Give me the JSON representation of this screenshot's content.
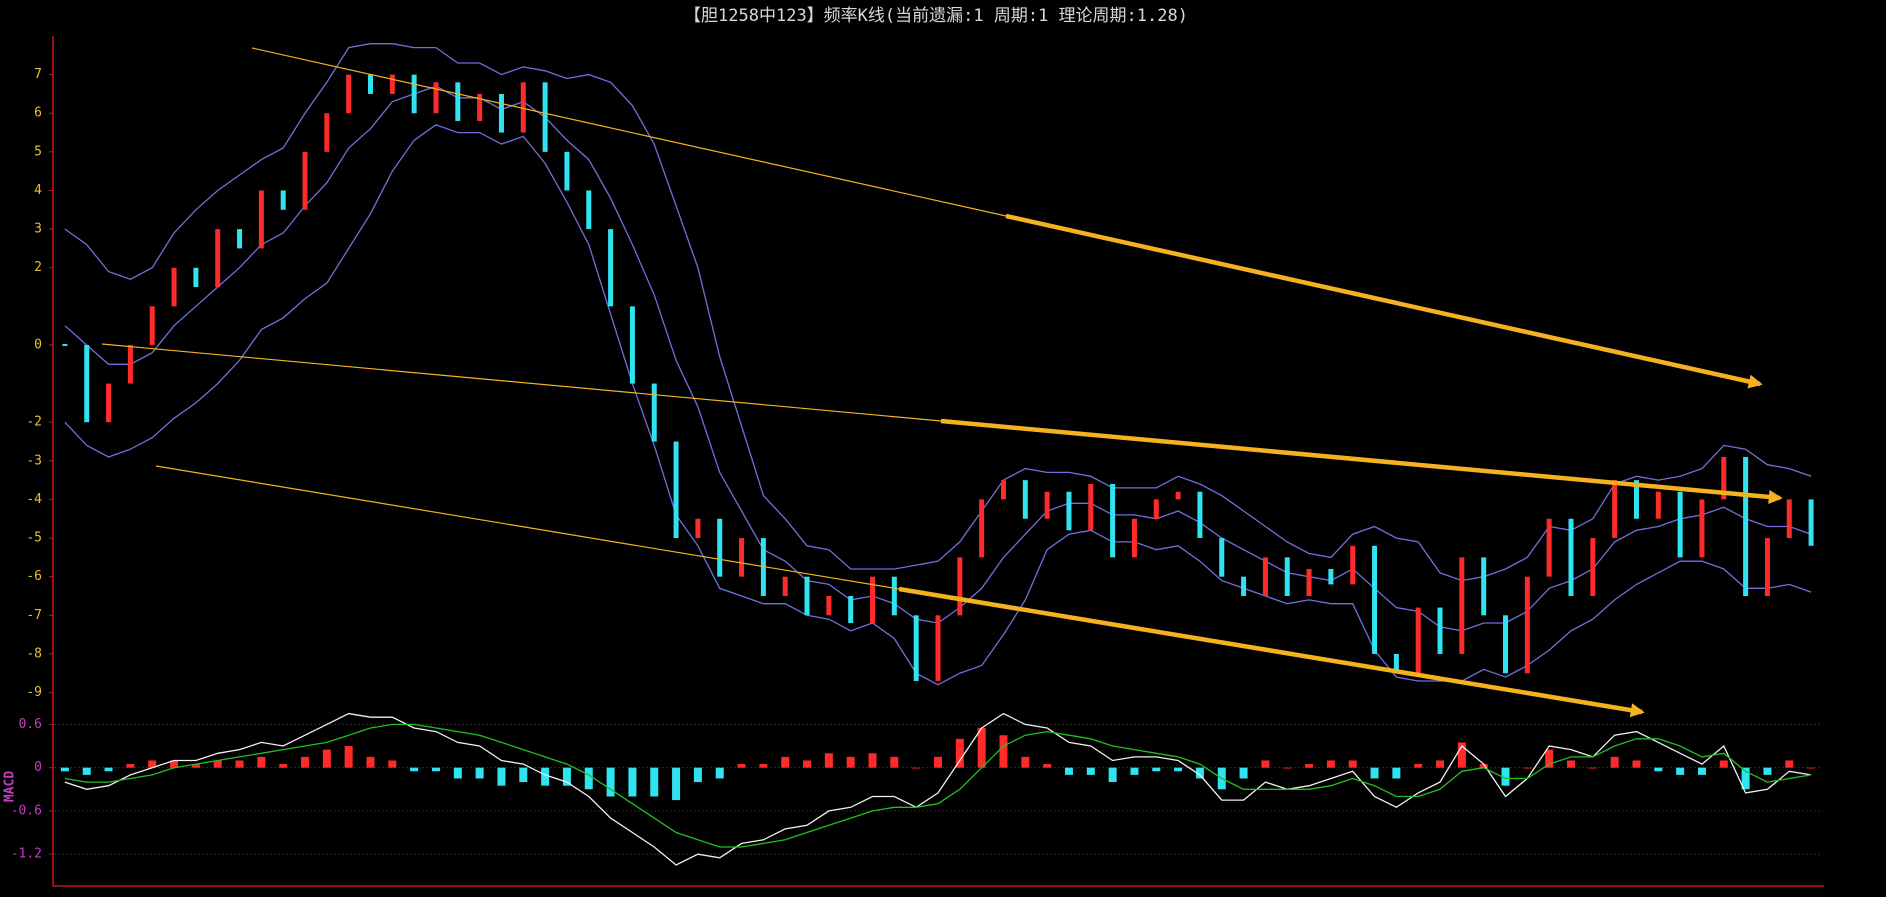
{
  "chart_data": [
    {
      "type": "candlestick",
      "title": "【胆1258中123】频率K线(当前遗漏:1 周期:1 理论周期:1.28)",
      "values": [
        0,
        -2,
        -1,
        0,
        1,
        2,
        1.5,
        3,
        2.5,
        4,
        3.5,
        5,
        6,
        7,
        6.5,
        7,
        6,
        6.8,
        5.8,
        6.5,
        5.5,
        6.8,
        5,
        4,
        3,
        1,
        -1,
        -2.5,
        -5,
        -4.5,
        -6,
        -5,
        -6.5,
        -6,
        -7,
        -6.5,
        -7.2,
        -6,
        -7,
        -8.7,
        -7,
        -5.5,
        -4,
        -3.5,
        -4.5,
        -3.8,
        -4.8,
        -3.6,
        -5.5,
        -4.5,
        -4,
        -3.8,
        -5,
        -6,
        -6.5,
        -5.5,
        -6.5,
        -5.8,
        -6.2,
        -5.2,
        -8,
        -8.5,
        -6.8,
        -8,
        -5.5,
        -7,
        -8.5,
        -6,
        -4.5,
        -6.5,
        -5,
        -3.5,
        -4.5,
        -3.8,
        -5.5,
        -4,
        -2.9,
        -6.5,
        -5,
        -4,
        -5.2
      ],
      "up_color": "#ff2a2a",
      "down_color": "#2fe3f0",
      "series": [
        {
          "color": "#7070dc",
          "values": [
            3.0,
            2.6,
            1.9,
            1.7,
            2.0,
            2.9,
            3.5,
            4.0,
            4.4,
            4.8,
            5.1,
            6.0,
            6.8,
            7.7,
            7.8,
            7.8,
            7.7,
            7.7,
            7.3,
            7.3,
            7.0,
            7.2,
            7.1,
            6.9,
            7.0,
            6.8,
            6.2,
            5.2,
            3.6,
            2.0,
            -0.3,
            -2.1,
            -3.9,
            -4.5,
            -5.2,
            -5.3,
            -5.8,
            -5.8,
            -5.8,
            -5.7,
            -5.6,
            -5.1,
            -4.3,
            -3.5,
            -3.2,
            -3.3,
            -3.3,
            -3.4,
            -3.7,
            -3.7,
            -3.7,
            -3.4,
            -3.6,
            -3.9,
            -4.3,
            -4.7,
            -5.1,
            -5.4,
            -5.5,
            -4.9,
            -4.7,
            -5.0,
            -5.1,
            -5.9,
            -6.1,
            -6.0,
            -5.8,
            -5.5,
            -4.7,
            -4.8,
            -4.5,
            -3.6,
            -3.4,
            -3.5,
            -3.4,
            -3.2,
            -2.6,
            -2.7,
            -3.1,
            -3.2,
            -3.4
          ]
        },
        {
          "color": "#7070dc",
          "values": [
            0.5,
            0,
            -0.5,
            -0.5,
            -0.2,
            0.5,
            1,
            1.5,
            2,
            2.6,
            2.9,
            3.6,
            4.2,
            5.1,
            5.6,
            6.3,
            6.5,
            6.7,
            6.4,
            6.4,
            6.1,
            6.3,
            5.9,
            5.3,
            4.8,
            3.8,
            2.6,
            1.3,
            -0.4,
            -1.6,
            -3.3,
            -4.3,
            -5.3,
            -5.6,
            -6.1,
            -6.2,
            -6.6,
            -6.5,
            -6.7,
            -7.1,
            -7.2,
            -6.8,
            -6.3,
            -5.5,
            -4.9,
            -4.3,
            -4.1,
            -4.1,
            -4.4,
            -4.4,
            -4.5,
            -4.3,
            -4.6,
            -5,
            -5.3,
            -5.6,
            -5.9,
            -6,
            -6.1,
            -5.8,
            -6.3,
            -6.8,
            -6.9,
            -7.3,
            -7.4,
            -7.2,
            -7.2,
            -6.9,
            -6.3,
            -6.1,
            -5.8,
            -5.1,
            -4.8,
            -4.7,
            -4.5,
            -4.4,
            -4.2,
            -4.5,
            -4.7,
            -4.7,
            -4.9
          ]
        },
        {
          "color": "#7070dc",
          "values": [
            -2.0,
            -2.6,
            -2.9,
            -2.7,
            -2.4,
            -1.9,
            -1.5,
            -1.0,
            -0.4,
            0.4,
            0.7,
            1.2,
            1.6,
            2.5,
            3.4,
            4.5,
            5.3,
            5.7,
            5.5,
            5.5,
            5.2,
            5.4,
            4.7,
            3.7,
            2.6,
            0.8,
            -1.0,
            -2.6,
            -4.4,
            -5.2,
            -6.3,
            -6.5,
            -6.7,
            -6.7,
            -7.0,
            -7.1,
            -7.4,
            -7.2,
            -7.6,
            -8.5,
            -8.8,
            -8.5,
            -8.3,
            -7.5,
            -6.6,
            -5.3,
            -4.9,
            -4.8,
            -5.1,
            -5.1,
            -5.3,
            -5.2,
            -5.6,
            -6.1,
            -6.3,
            -6.5,
            -6.7,
            -6.6,
            -6.7,
            -6.7,
            -7.9,
            -8.6,
            -8.7,
            -8.7,
            -8.7,
            -8.4,
            -8.6,
            -8.3,
            -7.9,
            -7.4,
            -7.1,
            -6.6,
            -6.2,
            -5.9,
            -5.6,
            -5.6,
            -5.8,
            -6.3,
            -6.3,
            -6.2,
            -6.4
          ]
        }
      ],
      "ylim": [
        -9.4,
        8.0
      ],
      "yticks": [
        7,
        6,
        5,
        4,
        3,
        2,
        0,
        -2,
        -3,
        -4,
        -5,
        -6,
        -7,
        -8,
        -9
      ],
      "tick_color": "#e8c030",
      "grid": false
    },
    {
      "type": "macd",
      "ylabel": "MACD",
      "histogram": [
        -0.05,
        -0.1,
        -0.05,
        0.05,
        0.1,
        0.1,
        0.05,
        0.1,
        0.1,
        0.15,
        0.05,
        0.15,
        0.25,
        0.3,
        0.15,
        0.1,
        -0.05,
        -0.05,
        -0.15,
        -0.15,
        -0.25,
        -0.2,
        -0.25,
        -0.25,
        -0.3,
        -0.4,
        -0.4,
        -0.4,
        -0.45,
        -0.2,
        -0.15,
        0.05,
        0.05,
        0.15,
        0.1,
        0.2,
        0.15,
        0.2,
        0.15,
        0,
        0.15,
        0.4,
        0.55,
        0.45,
        0.15,
        0.05,
        -0.1,
        -0.1,
        -0.2,
        -0.1,
        -0.05,
        -0.05,
        -0.15,
        -0.3,
        -0.15,
        0.1,
        0,
        0.05,
        0.1,
        0.1,
        -0.15,
        -0.15,
        0.05,
        0.1,
        0.35,
        0.05,
        -0.25,
        0,
        0.25,
        0.1,
        0,
        0.15,
        0.1,
        -0.05,
        -0.1,
        -0.1,
        0.1,
        -0.3,
        -0.1,
        0.1,
        0
      ],
      "up_color": "#ff2a2a",
      "down_color": "#2fe3f0",
      "series": [
        {
          "color": "#f0f0f0",
          "values": [
            -0.2,
            -0.3,
            -0.25,
            -0.1,
            0,
            0.1,
            0.1,
            0.2,
            0.25,
            0.35,
            0.3,
            0.45,
            0.6,
            0.75,
            0.7,
            0.7,
            0.55,
            0.5,
            0.35,
            0.3,
            0.1,
            0.05,
            -0.1,
            -0.2,
            -0.4,
            -0.7,
            -0.9,
            -1.1,
            -1.35,
            -1.2,
            -1.25,
            -1.05,
            -1.0,
            -0.85,
            -0.8,
            -0.6,
            -0.55,
            -0.4,
            -0.4,
            -0.55,
            -0.35,
            0.1,
            0.55,
            0.75,
            0.6,
            0.55,
            0.35,
            0.3,
            0.1,
            0.15,
            0.15,
            0.1,
            -0.1,
            -0.45,
            -0.45,
            -0.2,
            -0.3,
            -0.25,
            -0.15,
            -0.05,
            -0.4,
            -0.55,
            -0.35,
            -0.2,
            0.3,
            0.05,
            -0.4,
            -0.15,
            0.3,
            0.25,
            0.15,
            0.45,
            0.5,
            0.35,
            0.2,
            0.05,
            0.3,
            -0.35,
            -0.3,
            -0.05,
            -0.1
          ]
        },
        {
          "color": "#22c022",
          "values": [
            -0.15,
            -0.2,
            -0.2,
            -0.15,
            -0.1,
            0,
            0.05,
            0.1,
            0.15,
            0.2,
            0.25,
            0.3,
            0.35,
            0.45,
            0.55,
            0.6,
            0.6,
            0.55,
            0.5,
            0.45,
            0.35,
            0.25,
            0.15,
            0.05,
            -0.1,
            -0.3,
            -0.5,
            -0.7,
            -0.9,
            -1.0,
            -1.1,
            -1.1,
            -1.05,
            -1.0,
            -0.9,
            -0.8,
            -0.7,
            -0.6,
            -0.55,
            -0.55,
            -0.5,
            -0.3,
            0,
            0.3,
            0.45,
            0.5,
            0.45,
            0.4,
            0.3,
            0.25,
            0.2,
            0.15,
            0.05,
            -0.15,
            -0.3,
            -0.3,
            -0.3,
            -0.3,
            -0.25,
            -0.15,
            -0.25,
            -0.4,
            -0.4,
            -0.3,
            -0.05,
            0,
            -0.15,
            -0.15,
            0.05,
            0.15,
            0.15,
            0.3,
            0.4,
            0.4,
            0.3,
            0.15,
            0.2,
            -0.05,
            -0.2,
            -0.15,
            -0.1
          ]
        }
      ],
      "ylim": [
        -1.6,
        0.8
      ],
      "yticks": [
        0.6,
        0,
        -0.6,
        -1.2
      ],
      "tick_color": "#c43cc4",
      "grid": true
    }
  ]
}
